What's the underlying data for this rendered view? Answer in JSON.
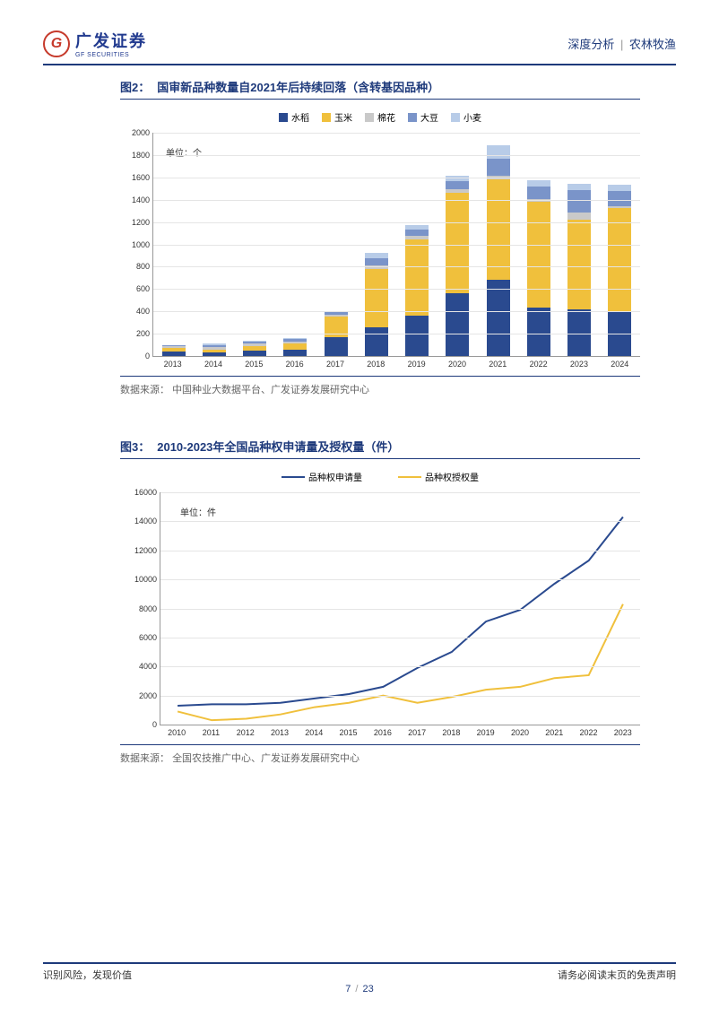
{
  "header": {
    "logo_cn": "广发证券",
    "logo_en": "GF SECURITIES",
    "logo_mark": "G",
    "breadcrumb_left": "深度分析",
    "breadcrumb_right": "农林牧渔"
  },
  "chart2": {
    "type": "stacked-bar",
    "title_prefix": "图2：",
    "title": "国审新品种数量自2021年后持续回落（含转基因品种）",
    "unit": "单位：个",
    "legend": [
      {
        "label": "水稻",
        "color": "#2a4a8f"
      },
      {
        "label": "玉米",
        "color": "#f0c03c"
      },
      {
        "label": "棉花",
        "color": "#c9c9c9"
      },
      {
        "label": "大豆",
        "color": "#7a94c9"
      },
      {
        "label": "小麦",
        "color": "#b8cce8"
      }
    ],
    "ylim": [
      0,
      2000
    ],
    "ytick_step": 200,
    "yticks": [
      "0",
      "200",
      "400",
      "600",
      "800",
      "1000",
      "1200",
      "1400",
      "1600",
      "1800",
      "2000"
    ],
    "categories": [
      "2013",
      "2014",
      "2015",
      "2016",
      "2017",
      "2018",
      "2019",
      "2020",
      "2021",
      "2022",
      "2023",
      "2024"
    ],
    "series": {
      "rice": [
        40,
        30,
        50,
        60,
        170,
        260,
        360,
        560,
        680,
        430,
        420,
        400
      ],
      "corn": [
        30,
        30,
        40,
        50,
        180,
        520,
        680,
        900,
        900,
        950,
        800,
        920
      ],
      "cotton": [
        15,
        20,
        20,
        20,
        20,
        30,
        30,
        30,
        30,
        20,
        60,
        20
      ],
      "soy": [
        10,
        20,
        20,
        20,
        20,
        60,
        60,
        70,
        150,
        110,
        200,
        130
      ],
      "wheat": [
        5,
        10,
        10,
        10,
        10,
        50,
        40,
        50,
        120,
        60,
        60,
        60
      ]
    },
    "source_label": "数据来源：",
    "source": "中国种业大数据平台、广发证券发展研究中心"
  },
  "chart3": {
    "type": "line",
    "title_prefix": "图3：",
    "title": "2010-2023年全国品种权申请量及授权量（件）",
    "unit": "单位：件",
    "legend": [
      {
        "label": "品种权申请量",
        "color": "#2a4a8f"
      },
      {
        "label": "品种权授权量",
        "color": "#f0c03c"
      }
    ],
    "ylim": [
      0,
      16000
    ],
    "ytick_step": 2000,
    "yticks": [
      "0",
      "2000",
      "4000",
      "6000",
      "8000",
      "10000",
      "12000",
      "14000",
      "16000"
    ],
    "categories": [
      "2010",
      "2011",
      "2012",
      "2013",
      "2014",
      "2015",
      "2016",
      "2017",
      "2018",
      "2019",
      "2020",
      "2021",
      "2022",
      "2023"
    ],
    "series": {
      "apply": [
        1300,
        1400,
        1400,
        1500,
        1800,
        2100,
        2600,
        3900,
        5000,
        7100,
        7900,
        9700,
        11300,
        14300
      ],
      "grant": [
        900,
        300,
        400,
        700,
        1200,
        1500,
        2000,
        1500,
        1900,
        2400,
        2600,
        3200,
        3400,
        8300
      ]
    },
    "line_width": 2,
    "source_label": "数据来源：",
    "source": "全国农技推广中心、广发证券发展研究中心"
  },
  "footer": {
    "left": "识别风险，发现价值",
    "right": "请务必阅读末页的免责声明",
    "page_current": "7",
    "page_total": "23"
  },
  "colors": {
    "brand_blue": "#1e3a7b",
    "grid": "#e5e5e5",
    "axis": "#999999"
  }
}
